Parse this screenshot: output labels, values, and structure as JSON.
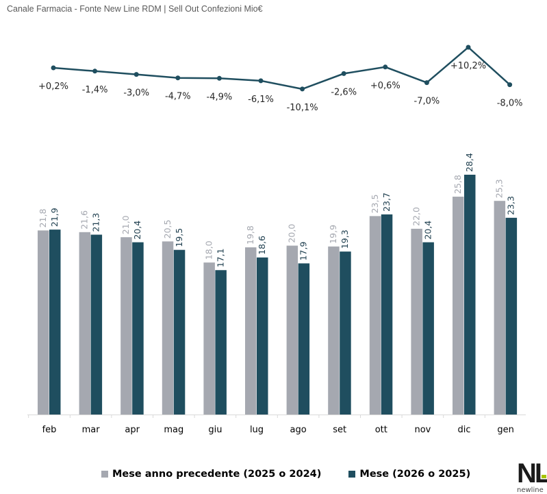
{
  "title": "Canale Farmacia - Fonte New Line RDM | Sell Out Confezioni Mio€",
  "logo": {
    "text": "NL",
    "subtext": "newline"
  },
  "colors": {
    "previous": "#a5a8b0",
    "current": "#1f4e5f",
    "line": "#1f4e5f",
    "accent": "#a8c400"
  },
  "chart_data": [
    {
      "type": "line",
      "categories": [
        "feb",
        "mar",
        "apr",
        "mag",
        "giu",
        "lug",
        "ago",
        "set",
        "ott",
        "nov",
        "dic",
        "gen"
      ],
      "values": [
        0.2,
        -1.4,
        -3.0,
        -4.7,
        -4.9,
        -6.1,
        -10.1,
        -2.6,
        0.6,
        -7.0,
        10.2,
        -8.0
      ],
      "labels": [
        "+0,2%",
        "-1,4%",
        "-3,0%",
        "-4,7%",
        "-4,9%",
        "-6,1%",
        "-10,1%",
        "-2,6%",
        "+0,6%",
        "-7,0%",
        "+10,2%",
        "-8,0%"
      ]
    },
    {
      "type": "bar",
      "categories": [
        "feb",
        "mar",
        "apr",
        "mag",
        "giu",
        "lug",
        "ago",
        "set",
        "ott",
        "nov",
        "dic",
        "gen"
      ],
      "series": [
        {
          "name": "Mese anno precedente (2025 o 2024)",
          "values": [
            21.8,
            21.6,
            21.0,
            20.5,
            18.0,
            19.8,
            20.0,
            19.9,
            23.5,
            22.0,
            25.8,
            25.3
          ],
          "labels": [
            "21,8",
            "21,6",
            "21,0",
            "20,5",
            "18,0",
            "19,8",
            "20,0",
            "19,9",
            "23,5",
            "22,0",
            "25,8",
            "25,3"
          ]
        },
        {
          "name": "Mese (2026 o 2025)",
          "values": [
            21.9,
            21.3,
            20.4,
            19.5,
            17.1,
            18.6,
            17.9,
            19.3,
            23.7,
            20.4,
            28.4,
            23.3
          ],
          "labels": [
            "21,9",
            "21,3",
            "20,4",
            "19,5",
            "17,1",
            "18,6",
            "17,9",
            "19,3",
            "23,7",
            "20,4",
            "28,4",
            "23,3"
          ]
        }
      ],
      "legend": "bottom",
      "ylim": [
        0,
        28.4
      ]
    }
  ]
}
